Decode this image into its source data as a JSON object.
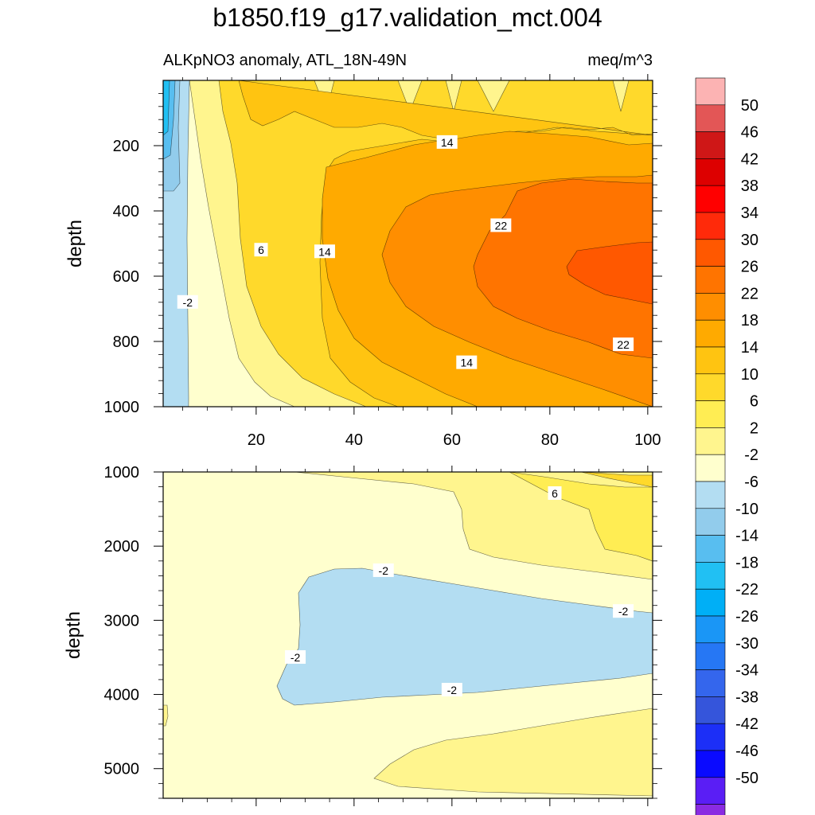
{
  "page": {
    "title": "b1850.f19_g17.validation_mct.004"
  },
  "chart_data": [
    {
      "type": "contour",
      "subtitle_left": "ALKpNO3 anomaly, ATL_18N-49N",
      "subtitle_right": "meq/m^3",
      "ylabel": "depth",
      "xlabel": "",
      "xlim": [
        1,
        101
      ],
      "ylim": [
        1000,
        0
      ],
      "x_ticks": [
        20,
        40,
        60,
        80,
        100
      ],
      "y_ticks": [
        200,
        400,
        600,
        800,
        1000
      ],
      "contour_labels": [
        {
          "text": "14",
          "x": 59,
          "y": 190
        },
        {
          "text": "22",
          "x": 70,
          "y": 445
        },
        {
          "text": "6",
          "x": 21,
          "y": 520
        },
        {
          "text": "14",
          "x": 34,
          "y": 525
        },
        {
          "text": "-2",
          "x": 6,
          "y": 680
        },
        {
          "text": "22",
          "x": 95,
          "y": 810
        },
        {
          "text": "14",
          "x": 63,
          "y": 865
        }
      ]
    },
    {
      "type": "contour",
      "ylabel": "depth",
      "xlim": [
        1,
        101
      ],
      "ylim": [
        5400,
        1000
      ],
      "y_ticks": [
        1000,
        2000,
        3000,
        4000,
        5000
      ],
      "contour_labels": [
        {
          "text": "6",
          "x": 81,
          "y": 1290
        },
        {
          "text": "-2",
          "x": 46,
          "y": 2330
        },
        {
          "text": "-2",
          "x": 95,
          "y": 2880
        },
        {
          "text": "-2",
          "x": 28,
          "y": 3500
        },
        {
          "text": "-2",
          "x": 60,
          "y": 3940
        }
      ]
    }
  ],
  "colorbar": {
    "labels": [
      "50",
      "46",
      "42",
      "38",
      "34",
      "30",
      "26",
      "22",
      "18",
      "14",
      "10",
      "6",
      "2",
      "-2",
      "-6",
      "-10",
      "-14",
      "-18",
      "-22",
      "-26",
      "-30",
      "-34",
      "-38",
      "-42",
      "-46",
      "-50"
    ],
    "colors": [
      "#FCB3B3",
      "#E35656",
      "#CF1717",
      "#DD0000",
      "#FF0000",
      "#FF2A0A",
      "#FF5800",
      "#FF7400",
      "#FF8E00",
      "#FFAA00",
      "#FFC411",
      "#FFD92B",
      "#FFED53",
      "#FFF58E",
      "#FFFFCE",
      "#B3DDF2",
      "#92CCEC",
      "#58BEF0",
      "#21C0F3",
      "#00AFF6",
      "#1A96F6",
      "#2677F4",
      "#3466ED",
      "#3555DB",
      "#1C2FF7",
      "#0A0AFF",
      "#5A1EF5",
      "#8A2BE2"
    ]
  }
}
